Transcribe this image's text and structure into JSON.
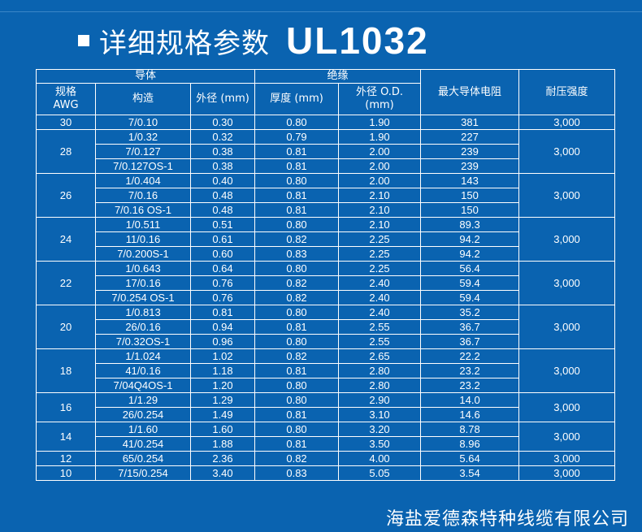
{
  "title": {
    "bullet_icon": "square-bullet-icon",
    "text": "详细规格参数",
    "model": "UL1032"
  },
  "table": {
    "group_headers": {
      "conductor": "导体",
      "insulation": "绝缘"
    },
    "headers": {
      "awg": "规格\nAWG",
      "construction": "构造",
      "conductor_od": "外径 (mm)",
      "thickness": "厚度 (mm)",
      "insulation_od": "外径 O.D.\n(mm)",
      "resistance": "最大导体电阻",
      "voltage": "耐压强度"
    },
    "groups": [
      {
        "awg": "30",
        "voltage": "3,000",
        "rows": [
          [
            "7/0.10",
            "0.30",
            "0.80",
            "1.90",
            "381"
          ]
        ]
      },
      {
        "awg": "28",
        "voltage": "3,000",
        "rows": [
          [
            "1/0.32",
            "0.32",
            "0.79",
            "1.90",
            "227"
          ],
          [
            "7/0.127",
            "0.38",
            "0.81",
            "2.00",
            "239"
          ],
          [
            "7/0.127OS-1",
            "0.38",
            "0.81",
            "2.00",
            "239"
          ]
        ]
      },
      {
        "awg": "26",
        "voltage": "3,000",
        "rows": [
          [
            "1/0.404",
            "0.40",
            "0.80",
            "2.00",
            "143"
          ],
          [
            "7/0.16",
            "0.48",
            "0.81",
            "2.10",
            "150"
          ],
          [
            "7/0.16 OS-1",
            "0.48",
            "0.81",
            "2.10",
            "150"
          ]
        ]
      },
      {
        "awg": "24",
        "voltage": "3,000",
        "rows": [
          [
            "1/0.511",
            "0.51",
            "0.80",
            "2.10",
            "89.3"
          ],
          [
            "11/0.16",
            "0.61",
            "0.82",
            "2.25",
            "94.2"
          ],
          [
            "7/0.200S-1",
            "0.60",
            "0.83",
            "2.25",
            "94.2"
          ]
        ]
      },
      {
        "awg": "22",
        "voltage": "3,000",
        "rows": [
          [
            "1/0.643",
            "0.64",
            "0.80",
            "2.25",
            "56.4"
          ],
          [
            "17/0.16",
            "0.76",
            "0.82",
            "2.40",
            "59.4"
          ],
          [
            "7/0.254 OS-1",
            "0.76",
            "0.82",
            "2.40",
            "59.4"
          ]
        ]
      },
      {
        "awg": "20",
        "voltage": "3,000",
        "rows": [
          [
            "1/0.813",
            "0.81",
            "0.80",
            "2.40",
            "35.2"
          ],
          [
            "26/0.16",
            "0.94",
            "0.81",
            "2.55",
            "36.7"
          ],
          [
            "7/0.32OS-1",
            "0.96",
            "0.80",
            "2.55",
            "36.7"
          ]
        ]
      },
      {
        "awg": "18",
        "voltage": "3,000",
        "rows": [
          [
            "1/1.024",
            "1.02",
            "0.82",
            "2.65",
            "22.2"
          ],
          [
            "41/0.16",
            "1.18",
            "0.81",
            "2.80",
            "23.2"
          ],
          [
            "7/04Q4OS-1",
            "1.20",
            "0.80",
            "2.80",
            "23.2"
          ]
        ]
      },
      {
        "awg": "16",
        "voltage": "3,000",
        "rows": [
          [
            "1/1.29",
            "1.29",
            "0.80",
            "2.90",
            "14.0"
          ],
          [
            "26/0.254",
            "1.49",
            "0.81",
            "3.10",
            "14.6"
          ]
        ]
      },
      {
        "awg": "14",
        "voltage": "3,000",
        "rows": [
          [
            "1/1.60",
            "1.60",
            "0.80",
            "3.20",
            "8.78"
          ],
          [
            "41/0.254",
            "1.88",
            "0.81",
            "3.50",
            "8.96"
          ]
        ]
      },
      {
        "awg": "12",
        "voltage": "3,000",
        "rows": [
          [
            "65/0.254",
            "2.36",
            "0.82",
            "4.00",
            "5.64"
          ]
        ]
      },
      {
        "awg": "10",
        "voltage": "3,000",
        "rows": [
          [
            "7/15/0.254",
            "3.40",
            "0.83",
            "5.05",
            "3.54"
          ]
        ]
      }
    ]
  },
  "company": "海盐爱德森特种线缆有限公司"
}
